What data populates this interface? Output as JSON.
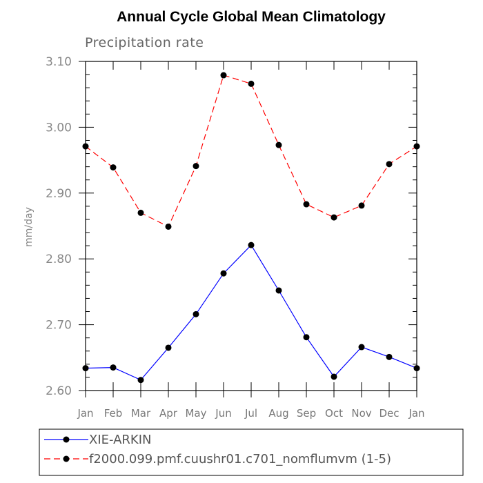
{
  "chart_data": {
    "type": "line",
    "title": "Annual Cycle Global Mean Climatology",
    "subtitle": "Precipitation rate",
    "ylabel": "mm/day",
    "xlabel": "",
    "ylim": [
      2.6,
      3.1
    ],
    "yticks": [
      2.6,
      2.7,
      2.8,
      2.9,
      3.0,
      3.1
    ],
    "ytick_labels": [
      "2.60",
      "2.70",
      "2.80",
      "2.90",
      "3.00",
      "3.10"
    ],
    "categories": [
      "Jan",
      "Feb",
      "Mar",
      "Apr",
      "May",
      "Jun",
      "Jul",
      "Aug",
      "Sep",
      "Oct",
      "Nov",
      "Dec",
      "Jan"
    ],
    "series": [
      {
        "name": "XIE-ARKIN",
        "color": "#0000ff",
        "dash": "solid",
        "values": [
          2.634,
          2.635,
          2.616,
          2.665,
          2.716,
          2.778,
          2.821,
          2.752,
          2.681,
          2.621,
          2.666,
          2.651,
          2.634
        ]
      },
      {
        "name": "f2000.099.pmf.cuushr01.c701_nomflumvm (1-5)",
        "color": "#ff0000",
        "dash": "dashed",
        "values": [
          2.971,
          2.939,
          2.87,
          2.849,
          2.941,
          3.079,
          3.066,
          2.973,
          2.883,
          2.863,
          2.881,
          2.944,
          2.971
        ]
      }
    ],
    "legend_position": "bottom"
  }
}
